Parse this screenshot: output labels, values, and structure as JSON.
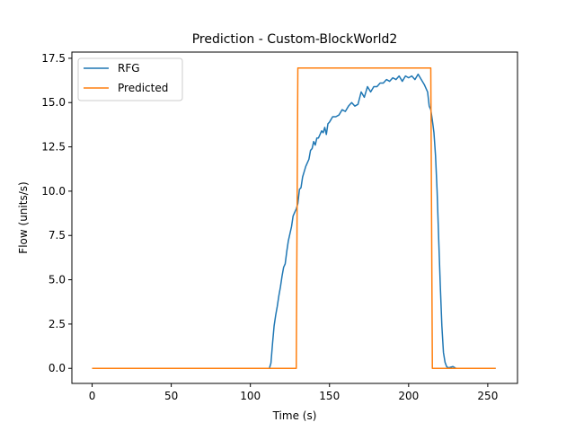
{
  "chart_data": {
    "type": "line",
    "title": "Prediction - Custom-BlockWorld2",
    "xlabel": "Time (s)",
    "ylabel": "Flow (units/s)",
    "xlim": [
      -12.8,
      268.8
    ],
    "ylim": [
      -0.85,
      17.85
    ],
    "xticks": [
      0,
      50,
      100,
      150,
      200,
      250
    ],
    "yticks": [
      0,
      2.5,
      5,
      7.5,
      10,
      12.5,
      15,
      17.5
    ],
    "xtick_labels": [
      "0",
      "50",
      "100",
      "150",
      "200",
      "250"
    ],
    "ytick_labels": [
      "0.0",
      "2.5",
      "5.0",
      "7.5",
      "10.0",
      "12.5",
      "15.0",
      "17.5"
    ],
    "grid": false,
    "legend_position": "upper-left",
    "series": [
      {
        "name": "RFG",
        "color": "#1f77b4",
        "x": [
          0,
          50,
          100,
          110,
          112,
          113,
          114,
          115,
          116,
          117,
          118,
          119,
          120,
          121,
          122,
          123,
          124,
          125,
          126,
          127,
          128,
          129,
          130,
          131,
          132,
          133,
          134,
          135,
          136,
          137,
          138,
          139,
          140,
          141,
          142,
          143,
          144,
          145,
          146,
          147,
          148,
          149,
          150,
          152,
          154,
          156,
          158,
          160,
          162,
          164,
          166,
          168,
          170,
          172,
          174,
          176,
          178,
          180,
          182,
          184,
          186,
          188,
          190,
          192,
          194,
          196,
          198,
          200,
          202,
          204,
          206,
          208,
          210,
          212,
          213,
          214,
          215,
          216,
          217,
          218,
          219,
          220,
          221,
          222,
          223,
          224,
          225,
          226,
          228,
          230,
          240,
          255
        ],
        "y": [
          0,
          0,
          0,
          0,
          0,
          0.3,
          1.4,
          2.4,
          3.0,
          3.5,
          4.1,
          4.6,
          5.2,
          5.7,
          5.9,
          6.6,
          7.2,
          7.6,
          8.0,
          8.6,
          8.8,
          9.0,
          9.3,
          10.1,
          10.2,
          10.8,
          11.1,
          11.4,
          11.6,
          11.8,
          12.3,
          12.4,
          12.8,
          12.6,
          13.0,
          13.0,
          13.2,
          13.4,
          13.3,
          13.6,
          13.2,
          13.8,
          13.9,
          14.2,
          14.2,
          14.3,
          14.6,
          14.5,
          14.8,
          15.0,
          14.8,
          14.9,
          15.6,
          15.3,
          15.9,
          15.6,
          15.9,
          15.9,
          16.1,
          16.1,
          16.3,
          16.2,
          16.4,
          16.3,
          16.5,
          16.2,
          16.5,
          16.4,
          16.5,
          16.3,
          16.6,
          16.3,
          16.0,
          15.6,
          14.8,
          14.6,
          14.0,
          13.3,
          12.0,
          10.0,
          7.3,
          4.7,
          2.4,
          0.9,
          0.35,
          0.1,
          0.03,
          0.05,
          0.1,
          0,
          0,
          0
        ]
      },
      {
        "name": "Predicted",
        "color": "#ff7f0e",
        "x": [
          0,
          129,
          130,
          214,
          215,
          255
        ],
        "y": [
          0,
          0,
          16.95,
          16.95,
          0,
          0
        ]
      }
    ]
  }
}
